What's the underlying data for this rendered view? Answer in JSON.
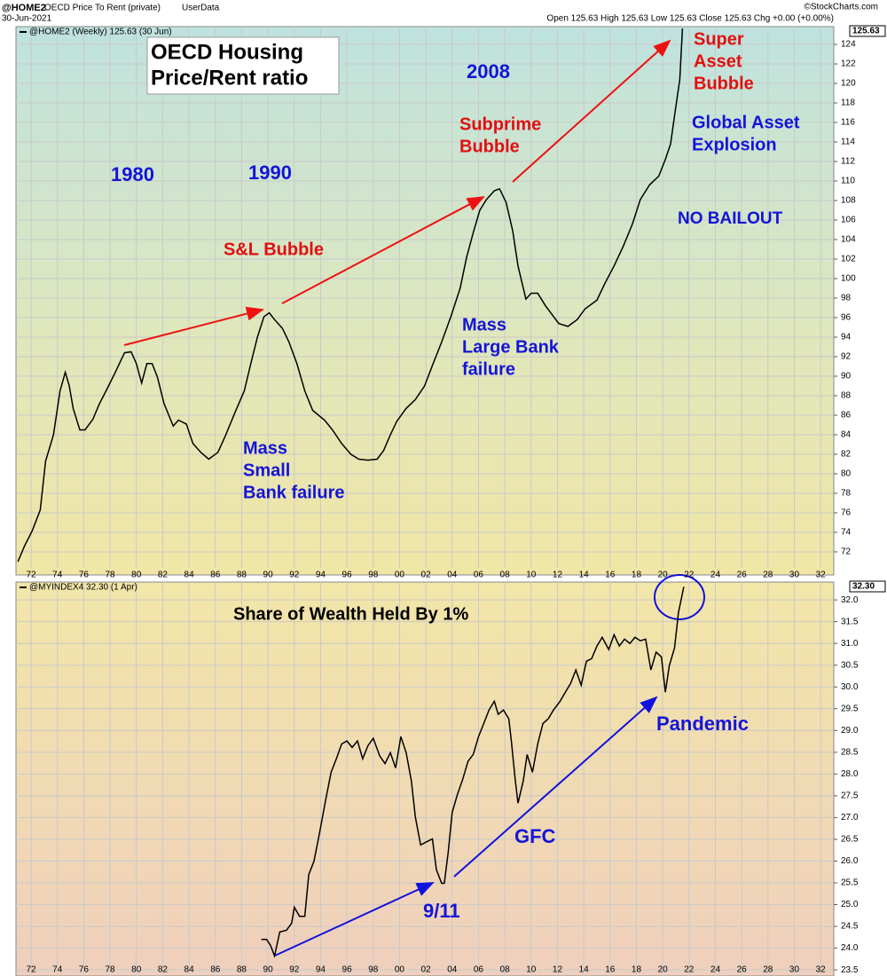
{
  "header": {
    "symbol": "@HOME2",
    "name": "OECD Price To Rent (private)",
    "source": "UserData",
    "date": "30-Jun-2021",
    "quote": "Open 125.63  High 125.63  Low 125.63  Close 125.63  Chg +0.00 (+0.00%)",
    "credit": "©StockCharts.com"
  },
  "chart_data": [
    {
      "type": "line",
      "last_label": "125.63",
      "grid": true,
      "series": [
        {
          "name": "@HOME2 (Weekly) 125.63 (30 Jun)",
          "color": "#000000",
          "values": [
            71.0,
            72.6,
            74.2,
            76.3,
            81.3,
            84.0,
            88.5,
            90.4,
            89.0,
            86.7,
            84.5,
            84.5,
            85.6,
            87.2,
            88.5,
            90.4,
            92.4,
            92.5,
            91.3,
            89.3,
            91.3,
            91.3,
            89.9,
            87.2,
            84.9,
            85.5,
            85.1,
            83.1,
            82.2,
            81.5,
            82.2,
            84.0,
            86.3,
            88.5,
            91.3,
            94.0,
            96.1,
            96.5,
            95.8,
            94.9,
            93.5,
            91.3,
            88.5,
            86.5,
            85.5,
            84.5,
            83.1,
            82.0,
            81.5,
            81.4,
            81.5,
            82.4,
            84.0,
            85.4,
            86.7,
            87.6,
            89.0,
            91.1,
            93.5,
            96.1,
            99.0,
            102.2,
            104.7,
            107.0,
            108.1,
            109.0,
            109.2,
            107.8,
            104.9,
            101.3,
            97.9,
            98.5,
            98.5,
            97.2,
            96.3,
            95.4,
            95.1,
            95.8,
            96.9,
            97.8,
            99.5,
            101.3,
            103.3,
            105.6,
            108.1,
            109.6,
            110.5,
            112.2,
            113.8,
            116.7,
            120.4,
            125.63
          ]
        }
      ],
      "x": [
        1971.0,
        1971.5,
        1972.1,
        1972.7,
        1973.1,
        1973.7,
        1974.2,
        1974.6,
        1974.9,
        1975.2,
        1975.7,
        1976.1,
        1976.7,
        1977.2,
        1977.7,
        1978.4,
        1979.1,
        1979.6,
        1980.0,
        1980.4,
        1980.8,
        1981.2,
        1981.6,
        1982.1,
        1982.8,
        1983.2,
        1983.8,
        1984.3,
        1984.9,
        1985.5,
        1986.2,
        1986.8,
        1987.5,
        1988.2,
        1988.7,
        1989.2,
        1989.7,
        1990.1,
        1990.5,
        1991.1,
        1991.6,
        1992.2,
        1992.8,
        1993.4,
        1994.3,
        1994.9,
        1995.6,
        1996.3,
        1996.9,
        1997.6,
        1998.3,
        1998.8,
        1999.3,
        1999.8,
        2000.5,
        2001.2,
        2001.9,
        2002.5,
        2003.2,
        2003.9,
        2004.6,
        2005.1,
        2005.6,
        2006.1,
        2006.6,
        2007.2,
        2007.6,
        2008.1,
        2008.6,
        2009.0,
        2009.6,
        2010.0,
        2010.5,
        2011.1,
        2011.6,
        2012.1,
        2012.8,
        2013.5,
        2014.1,
        2015.0,
        2015.6,
        2016.3,
        2017.0,
        2017.7,
        2018.3,
        2019.0,
        2019.7,
        2020.2,
        2020.6,
        2020.9,
        2021.3,
        2021.5
      ],
      "xlim": [
        1970.85,
        2033.0
      ],
      "xticks": [
        {
          "value": 1972,
          "label": "72"
        },
        {
          "value": 1974,
          "label": "74"
        },
        {
          "value": 1976,
          "label": "76"
        },
        {
          "value": 1978,
          "label": "78"
        },
        {
          "value": 1980,
          "label": "80"
        },
        {
          "value": 1982,
          "label": "82"
        },
        {
          "value": 1984,
          "label": "84"
        },
        {
          "value": 1986,
          "label": "86"
        },
        {
          "value": 1988,
          "label": "88"
        },
        {
          "value": 1990,
          "label": "90"
        },
        {
          "value": 1992,
          "label": "92"
        },
        {
          "value": 1994,
          "label": "94"
        },
        {
          "value": 1996,
          "label": "96"
        },
        {
          "value": 1998,
          "label": "98"
        },
        {
          "value": 2000,
          "label": "00"
        },
        {
          "value": 2002,
          "label": "02"
        },
        {
          "value": 2004,
          "label": "04"
        },
        {
          "value": 2006,
          "label": "06"
        },
        {
          "value": 2008,
          "label": "08"
        },
        {
          "value": 2010,
          "label": "10"
        },
        {
          "value": 2012,
          "label": "12"
        },
        {
          "value": 2014,
          "label": "14"
        },
        {
          "value": 2016,
          "label": "16"
        },
        {
          "value": 2018,
          "label": "18"
        },
        {
          "value": 2020,
          "label": "20"
        },
        {
          "value": 2022,
          "label": "22"
        },
        {
          "value": 2024,
          "label": "24"
        },
        {
          "value": 2026,
          "label": "26"
        },
        {
          "value": 2028,
          "label": "28"
        },
        {
          "value": 2030,
          "label": "30"
        },
        {
          "value": 2032,
          "label": "32"
        }
      ],
      "ylim": [
        70.36,
        125.82
      ],
      "yticks": [
        72,
        74,
        76,
        78,
        80,
        82,
        84,
        86,
        88,
        90,
        92,
        94,
        96,
        98,
        100,
        102,
        104,
        106,
        108,
        110,
        112,
        114,
        116,
        118,
        120,
        122,
        124
      ],
      "annotations": [
        {
          "lines": [
            "OECD Housing",
            "Price/Rent ratio"
          ],
          "color": "#000000"
        },
        {
          "lines": [
            "1980"
          ],
          "color": "#1414d8"
        },
        {
          "lines": [
            "1990"
          ],
          "color": "#1414d8"
        },
        {
          "lines": [
            "2008"
          ],
          "color": "#1414d8"
        },
        {
          "lines": [
            "S&L Bubble"
          ],
          "color": "#e01010"
        },
        {
          "lines": [
            "Subprime",
            "Bubble"
          ],
          "color": "#e01010"
        },
        {
          "lines": [
            "Super",
            "Asset",
            "Bubble"
          ],
          "color": "#e01010"
        },
        {
          "lines": [
            "Global Asset",
            "Explosion"
          ],
          "color": "#1414d8"
        },
        {
          "lines": [
            "NO BAILOUT"
          ],
          "color": "#1414d8"
        },
        {
          "lines": [
            "Mass",
            "Small",
            "Bank failure"
          ],
          "color": "#1414d8"
        },
        {
          "lines": [
            "Mass",
            "Large Bank",
            "failure"
          ],
          "color": "#1414d8"
        }
      ]
    },
    {
      "type": "line",
      "last_label": "32.30",
      "grid": true,
      "series": [
        {
          "name": "@MYINDEX4 32.30 (1 Apr)",
          "color": "#000000",
          "values": [
            24.2,
            24.2,
            24.06,
            23.82,
            24.37,
            24.41,
            24.57,
            24.94,
            24.73,
            24.73,
            25.69,
            26.0,
            26.61,
            27.43,
            28.04,
            28.35,
            28.69,
            28.76,
            28.61,
            28.76,
            28.35,
            28.65,
            28.82,
            28.41,
            28.24,
            28.49,
            28.14,
            28.86,
            28.49,
            27.84,
            27.02,
            26.37,
            26.45,
            26.51,
            25.8,
            25.49,
            25.49,
            26.2,
            27.12,
            27.53,
            27.88,
            28.29,
            28.45,
            28.86,
            29.16,
            29.47,
            29.67,
            29.37,
            29.47,
            29.27,
            28.76,
            27.84,
            27.33,
            27.84,
            28.45,
            28.04,
            28.69,
            29.16,
            29.27,
            29.47,
            29.67,
            29.88,
            30.08,
            30.39,
            30.04,
            30.59,
            30.65,
            30.94,
            31.14,
            30.86,
            31.2,
            30.94,
            31.1,
            31.0,
            31.14,
            31.06,
            31.1,
            30.39,
            30.8,
            30.69,
            29.88,
            30.49,
            30.9,
            31.71,
            32.3
          ]
        }
      ],
      "x": [
        1989.5,
        1989.9,
        1990.2,
        1990.5,
        1990.9,
        1991.4,
        1991.8,
        1992.0,
        1992.4,
        1992.8,
        1993.1,
        1993.5,
        1993.9,
        1994.4,
        1994.8,
        1995.2,
        1995.6,
        1996.0,
        1996.4,
        1996.8,
        1997.2,
        1997.6,
        1998.0,
        1998.5,
        1998.9,
        1999.3,
        1999.7,
        2000.1,
        2000.5,
        2000.9,
        2001.2,
        2001.6,
        2002.1,
        2002.5,
        2002.8,
        2003.2,
        2003.4,
        2003.7,
        2004.0,
        2004.4,
        2004.8,
        2005.2,
        2005.6,
        2006.0,
        2006.4,
        2006.8,
        2007.2,
        2007.5,
        2007.9,
        2008.3,
        2008.5,
        2008.8,
        2009.0,
        2009.4,
        2009.7,
        2010.1,
        2010.5,
        2010.9,
        2011.3,
        2011.7,
        2012.2,
        2012.6,
        2013.0,
        2013.4,
        2013.8,
        2014.2,
        2014.6,
        2015.0,
        2015.4,
        2015.9,
        2016.3,
        2016.7,
        2017.1,
        2017.5,
        2017.9,
        2018.3,
        2018.7,
        2019.1,
        2019.5,
        2019.9,
        2020.2,
        2020.5,
        2020.9,
        2021.2,
        2021.6
      ],
      "xlim": [
        1970.85,
        2033.0
      ],
      "xticks": [
        {
          "value": 1972,
          "label": "72"
        },
        {
          "value": 1974,
          "label": "74"
        },
        {
          "value": 1976,
          "label": "76"
        },
        {
          "value": 1978,
          "label": "78"
        },
        {
          "value": 1980,
          "label": "80"
        },
        {
          "value": 1982,
          "label": "82"
        },
        {
          "value": 1984,
          "label": "84"
        },
        {
          "value": 1986,
          "label": "86"
        },
        {
          "value": 1988,
          "label": "88"
        },
        {
          "value": 1990,
          "label": "90"
        },
        {
          "value": 1992,
          "label": "92"
        },
        {
          "value": 1994,
          "label": "94"
        },
        {
          "value": 1996,
          "label": "96"
        },
        {
          "value": 1998,
          "label": "98"
        },
        {
          "value": 2000,
          "label": "00"
        },
        {
          "value": 2002,
          "label": "02"
        },
        {
          "value": 2004,
          "label": "04"
        },
        {
          "value": 2006,
          "label": "06"
        },
        {
          "value": 2008,
          "label": "08"
        },
        {
          "value": 2010,
          "label": "10"
        },
        {
          "value": 2012,
          "label": "12"
        },
        {
          "value": 2014,
          "label": "14"
        },
        {
          "value": 2016,
          "label": "16"
        },
        {
          "value": 2018,
          "label": "18"
        },
        {
          "value": 2020,
          "label": "20"
        },
        {
          "value": 2022,
          "label": "22"
        },
        {
          "value": 2024,
          "label": "24"
        },
        {
          "value": 2026,
          "label": "26"
        },
        {
          "value": 2028,
          "label": "28"
        },
        {
          "value": 2030,
          "label": "30"
        },
        {
          "value": 2032,
          "label": "32"
        }
      ],
      "ylim": [
        23.36,
        32.41
      ],
      "yticks": [
        23.5,
        {
          "value": 24,
          "label": "24.0"
        },
        24.5,
        {
          "value": 25,
          "label": "25.0"
        },
        25.5,
        {
          "value": 26,
          "label": "26.0"
        },
        26.5,
        {
          "value": 27,
          "label": "27.0"
        },
        27.5,
        {
          "value": 28,
          "label": "28.0"
        },
        28.5,
        {
          "value": 29,
          "label": "29.0"
        },
        29.5,
        {
          "value": 30,
          "label": "30.0"
        },
        30.5,
        {
          "value": 31,
          "label": "31.0"
        },
        31.5,
        {
          "value": 32,
          "label": "32.0"
        }
      ],
      "annotations": [
        {
          "lines": [
            "Share of Wealth Held By 1%"
          ],
          "color": "#000000"
        },
        {
          "lines": [
            "9/11"
          ],
          "color": "#1414d8"
        },
        {
          "lines": [
            "GFC"
          ],
          "color": "#1414d8"
        },
        {
          "lines": [
            "Pandemic"
          ],
          "color": "#1414d8"
        }
      ]
    }
  ]
}
